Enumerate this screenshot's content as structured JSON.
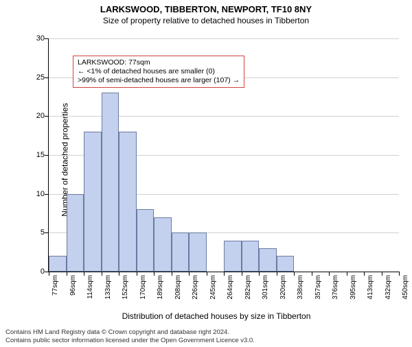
{
  "header": {
    "title": "LARKSWOOD, TIBBERTON, NEWPORT, TF10 8NY",
    "subtitle": "Size of property relative to detached houses in Tibberton"
  },
  "chart": {
    "type": "histogram",
    "ylabel": "Number of detached properties",
    "xlabel": "Distribution of detached houses by size in Tibberton",
    "ylim": [
      0,
      30
    ],
    "ytick_step": 5,
    "bar_fill": "#c3d1ee",
    "bar_stroke": "#6b7aa0",
    "grid_color": "#d0d0d0",
    "background_color": "#ffffff",
    "annotation_border": "#d04040",
    "x_categories": [
      "77sqm",
      "96sqm",
      "114sqm",
      "133sqm",
      "152sqm",
      "170sqm",
      "189sqm",
      "208sqm",
      "226sqm",
      "245sqm",
      "264sqm",
      "282sqm",
      "301sqm",
      "320sqm",
      "338sqm",
      "357sqm",
      "376sqm",
      "395sqm",
      "413sqm",
      "432sqm",
      "450sqm"
    ],
    "values": [
      2,
      10,
      18,
      23,
      18,
      8,
      7,
      5,
      5,
      0,
      4,
      4,
      3,
      2,
      0,
      0,
      0,
      0,
      0,
      0
    ],
    "x_label_fontsize": 10,
    "y_label_fontsize": 11,
    "axis_title_fontsize": 12
  },
  "annotation": {
    "line1": "LARKSWOOD: 77sqm",
    "line2": "← <1% of detached houses are smaller (0)",
    "line3": ">99% of semi-detached houses are larger (107) →"
  },
  "footer": {
    "line1": "Contains HM Land Registry data © Crown copyright and database right 2024.",
    "line2": "Contains public sector information licensed under the Open Government Licence v3.0."
  }
}
